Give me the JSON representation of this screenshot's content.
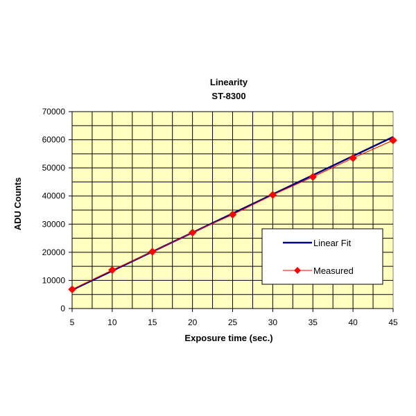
{
  "chart_data": {
    "type": "line",
    "title": "Linearity",
    "subtitle": "ST-8300",
    "xlabel": "Exposure time (sec.)",
    "ylabel": "ADU Counts",
    "xlim": [
      5,
      45
    ],
    "ylim": [
      0,
      70000
    ],
    "x_ticks": [
      5,
      10,
      15,
      20,
      25,
      30,
      35,
      40,
      45
    ],
    "y_ticks": [
      0,
      10000,
      20000,
      30000,
      40000,
      50000,
      60000,
      70000
    ],
    "x_minor_step": 2.5,
    "grid": true,
    "plot_background": "#ffffc0",
    "legend_position": "lower-right",
    "series": [
      {
        "name": "Linear Fit",
        "kind": "line",
        "color": "#000080",
        "x": [
          5,
          45
        ],
        "y": [
          6600,
          61000
        ]
      },
      {
        "name": "Measured",
        "kind": "line-marker",
        "color": "#ff0000",
        "marker": "diamond",
        "x": [
          5,
          10,
          15,
          20,
          25,
          30,
          35,
          40,
          45
        ],
        "y": [
          6800,
          13700,
          20200,
          27000,
          33400,
          40400,
          46800,
          53500,
          59800
        ]
      }
    ]
  }
}
